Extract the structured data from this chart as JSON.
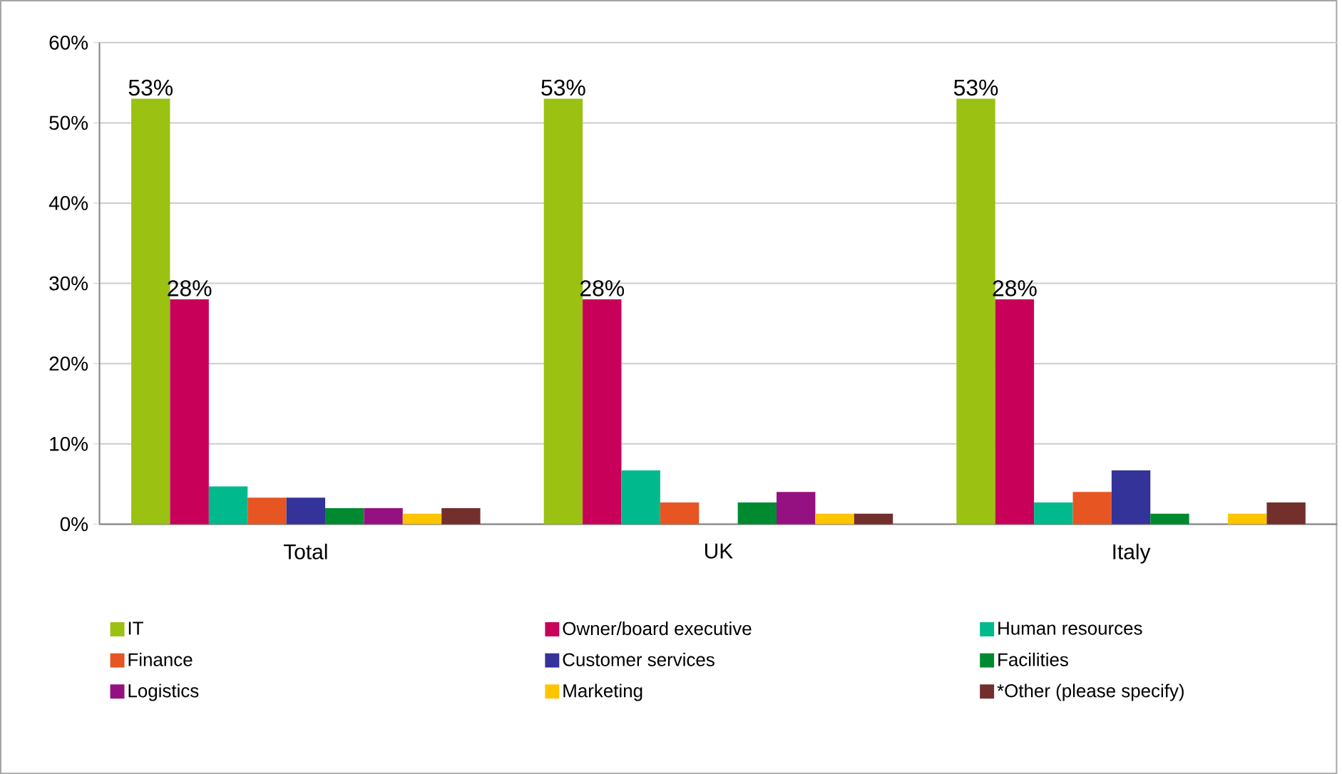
{
  "chart_data": {
    "type": "bar",
    "categories": [
      "Total",
      "UK",
      "Italy"
    ],
    "series": [
      {
        "name": "IT",
        "color": "#9bc112",
        "values": [
          53,
          53,
          53
        ],
        "value_labels": [
          "53%",
          "53%",
          "53%"
        ]
      },
      {
        "name": "Owner/board executive",
        "color": "#c8005a",
        "values": [
          28,
          28,
          28
        ],
        "value_labels": [
          "28%",
          "28%",
          "28%"
        ]
      },
      {
        "name": "Human resources",
        "color": "#00b98c",
        "values": [
          4.7,
          6.7,
          2.7
        ]
      },
      {
        "name": "Finance",
        "color": "#e65522",
        "values": [
          3.3,
          2.7,
          4.0
        ]
      },
      {
        "name": "Customer services",
        "color": "#343399",
        "values": [
          3.3,
          null,
          6.7
        ]
      },
      {
        "name": "Facilities",
        "color": "#008a30",
        "values": [
          2.0,
          2.7,
          1.3
        ]
      },
      {
        "name": "Logistics",
        "color": "#951080",
        "values": [
          2.0,
          4.0,
          null
        ]
      },
      {
        "name": "Marketing",
        "color": "#ffc400",
        "values": [
          1.3,
          1.3,
          1.3
        ]
      },
      {
        "name": "*Other (please specify)",
        "color": "#722f2c",
        "values": [
          2.0,
          1.3,
          2.7
        ]
      }
    ],
    "ylim": [
      0,
      60
    ],
    "yticks": [
      {
        "value": 0,
        "label": "0%"
      },
      {
        "value": 10,
        "label": "10%"
      },
      {
        "value": 20,
        "label": "20%"
      },
      {
        "value": 30,
        "label": "30%"
      },
      {
        "value": 40,
        "label": "40%"
      },
      {
        "value": 50,
        "label": "50%"
      },
      {
        "value": 60,
        "label": "60%"
      }
    ],
    "grid": "y",
    "legend": "bottom"
  }
}
